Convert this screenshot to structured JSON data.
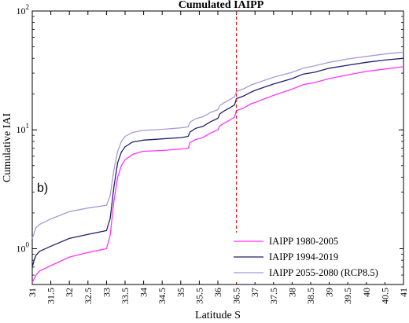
{
  "chart_data": {
    "type": "line",
    "title": "Cumulated IAIPP",
    "xlabel": "Latitude S",
    "ylabel": "Cumulative IAI",
    "panel_label": "b)",
    "xlim": [
      31,
      41
    ],
    "ylim": [
      0.5,
      100
    ],
    "yscale": "log",
    "x_ticks": [
      "31",
      "31.5",
      "32",
      "32.5",
      "33",
      "33.5",
      "34",
      "34.5",
      "35",
      "35.5",
      "36",
      "36.5",
      "37",
      "37.5",
      "38",
      "38.5",
      "39",
      "39.5",
      "40",
      "40.5",
      "41"
    ],
    "y_ticks": [
      {
        "base": "10",
        "exp": "0",
        "value": 1
      },
      {
        "base": "10",
        "exp": "1",
        "value": 10
      },
      {
        "base": "10",
        "exp": "2",
        "value": 100
      }
    ],
    "reference_line": {
      "x": 36.5,
      "color": "#e31a1c"
    },
    "legend_position": "bottom-right",
    "series": [
      {
        "name": "IAIPP 1980-2005",
        "color": "#ff33ff",
        "x": [
          31.0,
          31.05,
          31.1,
          31.2,
          31.5,
          32.0,
          32.5,
          33.0,
          33.1,
          33.2,
          33.3,
          33.4,
          33.5,
          33.7,
          33.9,
          34.0,
          34.5,
          35.0,
          35.2,
          35.25,
          35.4,
          35.6,
          35.7,
          35.8,
          36.0,
          36.05,
          36.15,
          36.3,
          36.45,
          36.5,
          36.7,
          36.9,
          37.0,
          37.5,
          38.0,
          38.3,
          38.6,
          39.0,
          39.5,
          40.0,
          40.5,
          41.0
        ],
        "values": [
          0.52,
          0.56,
          0.6,
          0.65,
          0.72,
          0.85,
          0.93,
          1.0,
          1.3,
          2.5,
          4.0,
          5.0,
          5.6,
          6.2,
          6.5,
          6.6,
          6.7,
          6.9,
          7.0,
          7.8,
          8.3,
          8.6,
          9.0,
          9.4,
          10.0,
          10.8,
          11.3,
          12.0,
          12.8,
          14.5,
          15.3,
          16.6,
          17.0,
          19.5,
          22.0,
          24.0,
          25.0,
          27.0,
          29.0,
          31.0,
          32.5,
          34.0
        ]
      },
      {
        "name": "IAIPP 1994-2019",
        "color": "#1f1f6e",
        "x": [
          31.0,
          31.05,
          31.1,
          31.2,
          31.5,
          32.0,
          32.5,
          33.0,
          33.1,
          33.2,
          33.3,
          33.4,
          33.5,
          33.7,
          33.9,
          34.0,
          34.5,
          35.0,
          35.2,
          35.25,
          35.4,
          35.6,
          35.7,
          35.8,
          36.0,
          36.05,
          36.15,
          36.3,
          36.45,
          36.5,
          36.7,
          36.9,
          37.0,
          37.5,
          38.0,
          38.3,
          38.6,
          39.0,
          39.5,
          40.0,
          40.5,
          41.0
        ],
        "values": [
          0.7,
          0.8,
          0.88,
          0.95,
          1.05,
          1.22,
          1.32,
          1.42,
          1.8,
          3.3,
          5.3,
          6.5,
          7.2,
          7.9,
          8.1,
          8.2,
          8.4,
          8.6,
          8.8,
          9.6,
          10.3,
          10.7,
          11.2,
          11.7,
          12.5,
          13.6,
          14.3,
          15.2,
          16.2,
          18.3,
          19.3,
          20.8,
          21.5,
          24.3,
          27.0,
          29.5,
          30.5,
          33.0,
          35.0,
          37.0,
          38.7,
          40.0
        ]
      },
      {
        "name": "IAIPP 2055-2080 (RCP8.5)",
        "color": "#a99ad6",
        "x": [
          31.0,
          31.05,
          31.1,
          31.2,
          31.5,
          32.0,
          32.5,
          33.0,
          33.1,
          33.2,
          33.3,
          33.4,
          33.5,
          33.7,
          33.9,
          34.0,
          34.5,
          35.0,
          35.2,
          35.25,
          35.4,
          35.6,
          35.7,
          35.8,
          36.0,
          36.05,
          36.15,
          36.3,
          36.45,
          36.5,
          36.7,
          36.9,
          37.0,
          37.5,
          38.0,
          38.3,
          38.6,
          39.0,
          39.5,
          40.0,
          40.5,
          41.0
        ],
        "values": [
          1.22,
          1.35,
          1.5,
          1.6,
          1.78,
          2.05,
          2.2,
          2.32,
          2.8,
          4.6,
          6.6,
          8.0,
          8.8,
          9.5,
          9.8,
          9.9,
          10.1,
          10.4,
          10.6,
          11.6,
          12.4,
          12.9,
          13.4,
          14.0,
          14.8,
          16.0,
          16.8,
          17.8,
          19.0,
          21.0,
          22.2,
          23.9,
          24.5,
          27.7,
          30.5,
          33.0,
          34.5,
          37.0,
          39.5,
          41.5,
          43.5,
          45.0
        ]
      }
    ]
  }
}
